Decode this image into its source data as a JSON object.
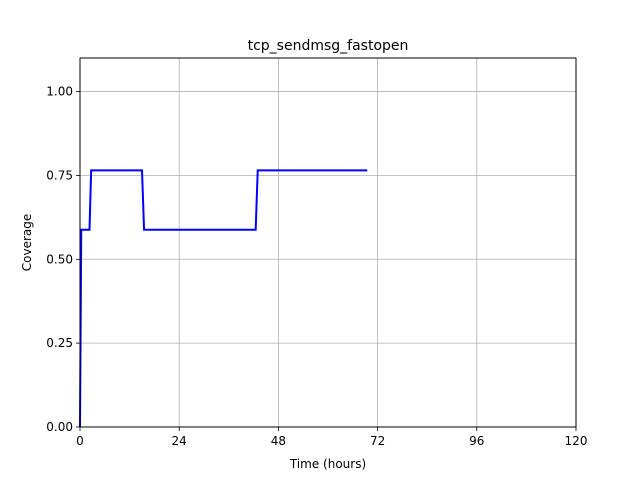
{
  "chart_data": {
    "type": "line",
    "title": "tcp_sendmsg_fastopen",
    "xlabel": "Time (hours)",
    "ylabel": "Coverage",
    "xlim": [
      0,
      120
    ],
    "ylim": [
      0,
      1.1
    ],
    "xticks": [
      0,
      24,
      48,
      72,
      96,
      120
    ],
    "xtick_labels": [
      "0",
      "24",
      "48",
      "72",
      "96",
      "120"
    ],
    "yticks": [
      0,
      0.25,
      0.5,
      0.75,
      1.0
    ],
    "ytick_labels": [
      "0.00",
      "0.25",
      "0.50",
      "0.75",
      "1.00"
    ],
    "grid": true,
    "series": [
      {
        "color": "#0000ff",
        "x": [
          0,
          0.3,
          2.3,
          2.7,
          15.0,
          15.5,
          42.5,
          43.0,
          69.5
        ],
        "y": [
          0,
          0.588,
          0.588,
          0.765,
          0.765,
          0.588,
          0.588,
          0.765,
          0.765
        ]
      }
    ]
  }
}
